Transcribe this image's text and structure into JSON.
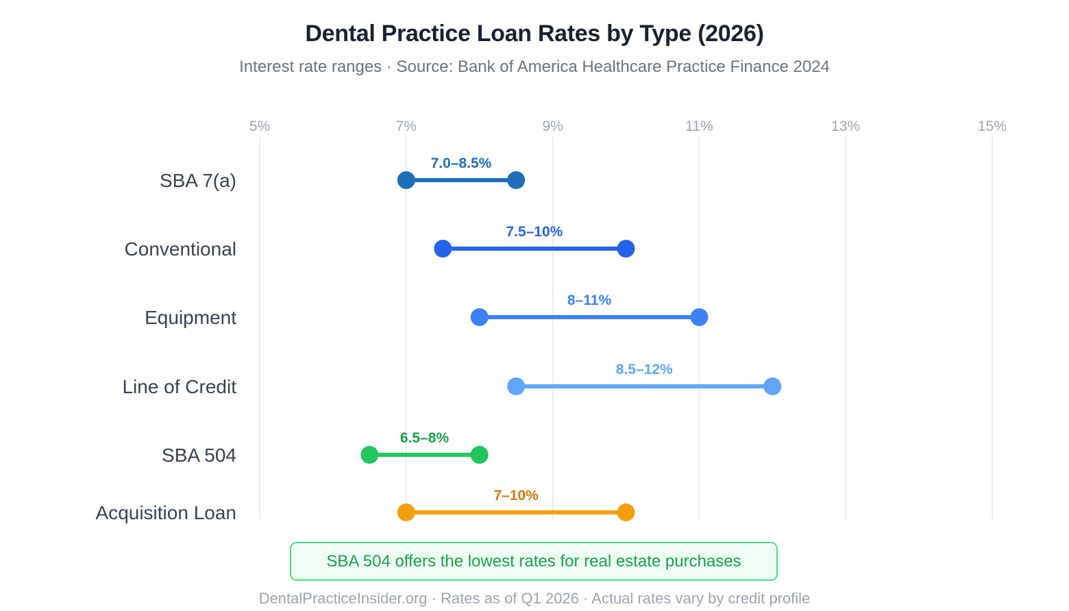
{
  "header": {
    "title": "Dental Practice Loan Rates by Type (2026)",
    "subtitle": "Interest rate ranges · Source: Bank of America Healthcare Practice Finance 2024"
  },
  "callout": {
    "text": "SBA 504 offers the lowest rates for real estate purchases"
  },
  "footer": {
    "text": "DentalPracticeInsider.org · Rates as of Q1 2026 · Actual rates vary by credit profile"
  },
  "chart_data": {
    "type": "range-dot",
    "title": "Dental Practice Loan Rates by Type (2026)",
    "subtitle": "Interest rate ranges · Source: Bank of America Healthcare Practice Finance 2024",
    "xlim": [
      5,
      15
    ],
    "x_ticks": [
      5,
      7,
      9,
      11,
      13,
      15
    ],
    "x_tick_labels": [
      "5%",
      "7%",
      "9%",
      "11%",
      "13%",
      "15%"
    ],
    "x_tick_position": "top",
    "grid": true,
    "categories": [
      "SBA 7(a)",
      "Conventional",
      "Equipment",
      "Line of Credit",
      "SBA 504",
      "Acquisition Loan"
    ],
    "ranges": [
      {
        "name": "SBA 7(a)",
        "low": 7.0,
        "high": 8.5,
        "label": "7.0–8.5%",
        "color": "#1d6fb8",
        "label_color": "#1d6fb8"
      },
      {
        "name": "Conventional",
        "low": 7.5,
        "high": 10,
        "label": "7.5–10%",
        "color": "#2563eb",
        "label_color": "#2563eb"
      },
      {
        "name": "Equipment",
        "low": 8,
        "high": 11,
        "label": "8–11%",
        "color": "#3b82f6",
        "label_color": "#3b82f6"
      },
      {
        "name": "Line of Credit",
        "low": 8.5,
        "high": 12,
        "label": "8.5–12%",
        "color": "#60a5fa",
        "label_color": "#60a5fa"
      },
      {
        "name": "SBA 504",
        "low": 6.5,
        "high": 8,
        "label": "6.5–8%",
        "color": "#22c55e",
        "label_color": "#16a34a"
      },
      {
        "name": "Acquisition Loan",
        "low": 7,
        "high": 10,
        "label": "7–10%",
        "color": "#f59e0b",
        "label_color": "#d97706"
      }
    ]
  }
}
